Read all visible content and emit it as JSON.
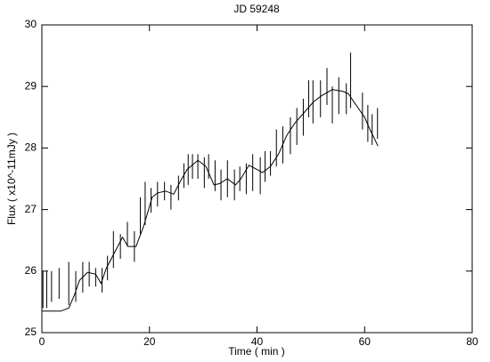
{
  "chart_data": {
    "type": "errorbar",
    "title": "JD 59248",
    "x_label": "Time ( min )",
    "y_label": "Flux ( x10^-11mJy )",
    "xlim": [
      0,
      80
    ],
    "xticks": [
      0,
      20,
      40,
      60,
      80
    ],
    "ylim": [
      25,
      30
    ],
    "yticks": [
      25,
      26,
      27,
      28,
      29,
      30
    ],
    "series": [
      {
        "type": "errorbar",
        "color": "#000000",
        "x": [
          0.2,
          0.9,
          1.8,
          3.2,
          5.0,
          6.3,
          7.6,
          8.8,
          10.0,
          11.2,
          12.2,
          13.3,
          14.6,
          15.9,
          17.2,
          18.3,
          19.2,
          20.3,
          21.5,
          22.8,
          24.0,
          25.4,
          26.4,
          27.2,
          28.0,
          29.0,
          30.2,
          31.0,
          32.2,
          33.3,
          34.5,
          35.8,
          36.8,
          38.0,
          39.2,
          40.6,
          41.5,
          42.5,
          43.6,
          44.8,
          46.2,
          47.4,
          48.6,
          49.6,
          50.4,
          51.8,
          53.0,
          54.0,
          55.2,
          56.6,
          57.4,
          59.6,
          60.6,
          61.4,
          62.4
        ],
        "values": [
          25.7,
          25.7,
          25.75,
          25.8,
          25.8,
          25.75,
          25.9,
          25.95,
          25.9,
          25.85,
          26.05,
          26.35,
          26.4,
          26.6,
          26.4,
          26.9,
          27.1,
          27.15,
          27.25,
          27.3,
          27.2,
          27.35,
          27.55,
          27.65,
          27.7,
          27.7,
          27.6,
          27.7,
          27.55,
          27.4,
          27.5,
          27.4,
          27.5,
          27.5,
          27.6,
          27.55,
          27.7,
          27.75,
          28.0,
          28.05,
          28.2,
          28.35,
          28.5,
          28.8,
          28.75,
          28.8,
          29.0,
          28.7,
          28.85,
          28.8,
          29.1,
          28.6,
          28.4,
          28.3,
          28.4
        ],
        "errors": [
          0.3,
          0.3,
          0.25,
          0.25,
          0.35,
          0.25,
          0.25,
          0.2,
          0.15,
          0.2,
          0.2,
          0.3,
          0.2,
          0.2,
          0.25,
          0.3,
          0.35,
          0.2,
          0.2,
          0.15,
          0.2,
          0.2,
          0.2,
          0.25,
          0.2,
          0.2,
          0.25,
          0.2,
          0.25,
          0.25,
          0.3,
          0.25,
          0.2,
          0.25,
          0.3,
          0.3,
          0.25,
          0.2,
          0.3,
          0.3,
          0.3,
          0.3,
          0.3,
          0.3,
          0.35,
          0.3,
          0.3,
          0.3,
          0.3,
          0.25,
          0.45,
          0.3,
          0.3,
          0.25,
          0.25
        ]
      },
      {
        "type": "line",
        "color": "#000000",
        "x": [
          0,
          2,
          3.5,
          5,
          6,
          7,
          8.5,
          10,
          11,
          12,
          13.5,
          15,
          16,
          17.5,
          19,
          20.5,
          21.5,
          23,
          24.5,
          26,
          27,
          29,
          30.5,
          32,
          33,
          34.5,
          36,
          37,
          38.5,
          40,
          41,
          42.5,
          44,
          45.5,
          47,
          49,
          50.5,
          52,
          54,
          56,
          57,
          58,
          60,
          61,
          62.5
        ],
        "values": [
          25.35,
          25.35,
          25.35,
          25.4,
          25.6,
          25.85,
          25.98,
          25.95,
          25.8,
          26.05,
          26.3,
          26.55,
          26.4,
          26.4,
          26.75,
          27.2,
          27.27,
          27.3,
          27.25,
          27.5,
          27.65,
          27.8,
          27.7,
          27.4,
          27.42,
          27.5,
          27.4,
          27.5,
          27.72,
          27.65,
          27.6,
          27.7,
          27.9,
          28.2,
          28.4,
          28.6,
          28.75,
          28.85,
          28.95,
          28.92,
          28.88,
          28.75,
          28.5,
          28.3,
          28.03
        ]
      }
    ]
  }
}
